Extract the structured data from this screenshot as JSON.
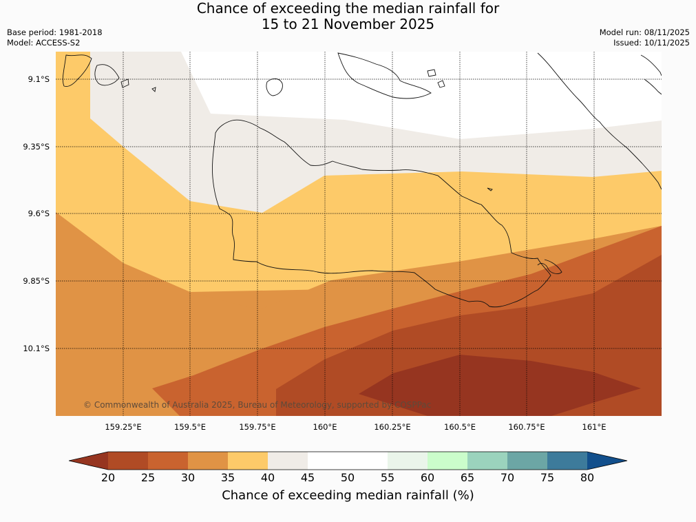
{
  "title": {
    "line1": "Chance of exceeding the median rainfall for",
    "line2": "15 to 21 November 2025"
  },
  "meta": {
    "base_period": "Base period: 1981-2018",
    "model": "Model: ACCESS-S2",
    "model_run": "Model run: 08/11/2025",
    "issued": "Issued: 10/11/2025"
  },
  "copyright": "© Commonwealth of Australia 2025, Bureau of Meteorology, supported by COSPPac",
  "latitude_labels": [
    "9.1°S",
    "9.35°S",
    "9.6°S",
    "9.85°S",
    "10.1°S"
  ],
  "longitude_labels": [
    "159.25°E",
    "159.5°E",
    "159.75°E",
    "160°E",
    "160.25°E",
    "160.5°E",
    "160.75°E",
    "161°E"
  ],
  "colorbar": {
    "label": "Chance of exceeding median rainfall (%)",
    "ticks": [
      "20",
      "25",
      "30",
      "35",
      "40",
      "45",
      "50",
      "55",
      "60",
      "65",
      "70",
      "75",
      "80"
    ],
    "colors": {
      "below_20": "#963520",
      "20_25": "#b04b25",
      "25_30": "#c9632f",
      "30_35": "#e09345",
      "35_40": "#fdca69",
      "40_45": "#f0ece7",
      "45_50": "#ffffff",
      "50_55": "#ffffff",
      "55_60": "#eaf5ea",
      "60_65": "#cbfdcb",
      "65_70": "#9bd3bd",
      "70_75": "#6ca6a5",
      "75_80": "#3d7b9b",
      "above_80": "#124f8c"
    }
  }
}
